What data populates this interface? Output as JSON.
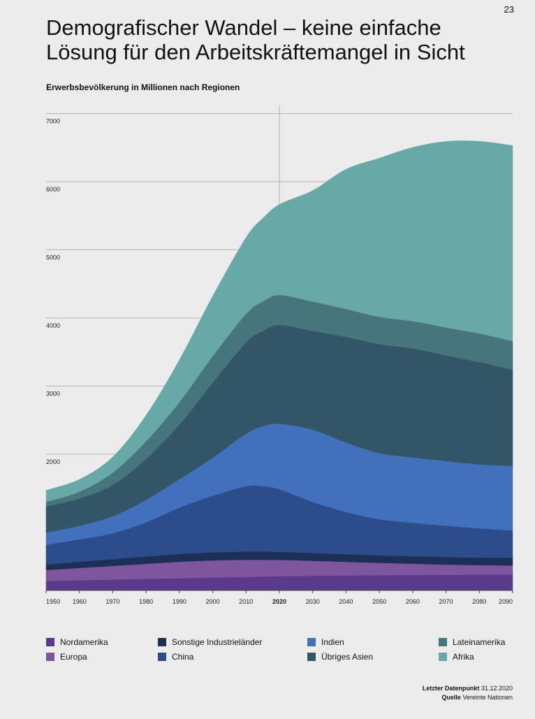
{
  "page": {
    "number": "23"
  },
  "header": {
    "title_line1": "Demografischer Wandel – keine einfache",
    "title_line2": "Lösung für den Arbeitskräftemangel in Sicht"
  },
  "chart_data": {
    "type": "area",
    "stacked": true,
    "title": "Erwerbsbevölkerung in Millionen nach Regionen",
    "xlabel": "",
    "ylabel": "",
    "ylim": [
      0,
      7000
    ],
    "y_ticks": [
      2000,
      3000,
      4000,
      5000,
      6000,
      7000
    ],
    "highlight_x": 2020,
    "x": [
      1950,
      1960,
      1970,
      1980,
      1990,
      2000,
      2010,
      2015,
      2020,
      2030,
      2040,
      2050,
      2060,
      2070,
      2080,
      2090
    ],
    "x_tick_labels": [
      "1950",
      "1960",
      "1970",
      "1980",
      "1990",
      "2000",
      "2010",
      "2020",
      "2030",
      "2040",
      "2050",
      "2060",
      "2070",
      "2080",
      "2090"
    ],
    "series": [
      {
        "name": "Nordamerika",
        "color": "#5b3a8c",
        "values": [
          140,
          150,
          160,
          170,
          180,
          190,
          200,
          205,
          210,
          215,
          220,
          225,
          228,
          230,
          232,
          235
        ]
      },
      {
        "name": "Europa",
        "color": "#7e56a0",
        "values": [
          160,
          180,
          200,
          220,
          240,
          250,
          250,
          245,
          238,
          220,
          200,
          180,
          165,
          150,
          140,
          130
        ]
      },
      {
        "name": "Sonstige Industrieländer",
        "color": "#1c2f55",
        "values": [
          80,
          90,
          100,
          110,
          115,
          120,
          120,
          120,
          118,
          115,
          112,
          110,
          110,
          110,
          110,
          115
        ]
      },
      {
        "name": "China",
        "color": "#2c4c8c",
        "values": [
          290,
          330,
          380,
          500,
          680,
          830,
          960,
          960,
          920,
          750,
          620,
          530,
          490,
          460,
          430,
          400
        ]
      },
      {
        "name": "Indien",
        "color": "#4170bc",
        "values": [
          180,
          200,
          250,
          330,
          420,
          560,
          770,
          880,
          960,
          1060,
          1020,
          970,
          960,
          950,
          940,
          950
        ]
      },
      {
        "name": "Übriges Asien",
        "color": "#325665",
        "values": [
          380,
          400,
          460,
          600,
          800,
          1100,
          1340,
          1400,
          1450,
          1450,
          1550,
          1600,
          1600,
          1550,
          1500,
          1410
        ]
      },
      {
        "name": "Lateinamerika",
        "color": "#46757e",
        "values": [
          70,
          100,
          180,
          260,
          330,
          390,
          420,
          430,
          440,
          430,
          410,
          400,
          400,
          410,
          420,
          420
        ]
      },
      {
        "name": "Afrika",
        "color": "#67a9a7",
        "values": [
          170,
          180,
          230,
          380,
          620,
          880,
          1120,
          1220,
          1330,
          1630,
          2050,
          2330,
          2550,
          2730,
          2820,
          2870
        ]
      }
    ]
  },
  "legend": [
    {
      "label": "Nordamerika"
    },
    {
      "label": "Europa"
    },
    {
      "label": "Sonstige Industrieländer"
    },
    {
      "label": "China"
    },
    {
      "label": "Indien"
    },
    {
      "label": "Übriges Asien"
    },
    {
      "label": "Lateinamerika"
    },
    {
      "label": "Afrika"
    }
  ],
  "footer": {
    "last_datapoint_label": "Letzter Datenpunkt",
    "last_datapoint_value": "31.12.2020",
    "source_label": "Quelle",
    "source_value": "Vereinte Nationen"
  }
}
